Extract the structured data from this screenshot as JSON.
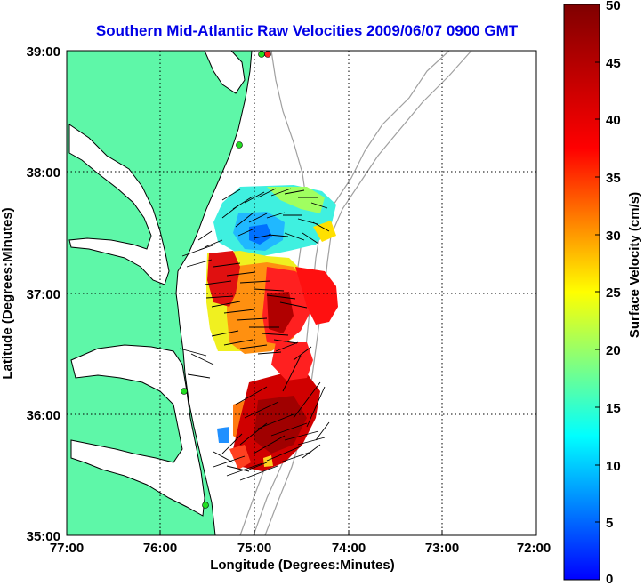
{
  "title": "Southern Mid-Atlantic Raw Velocities 2009/06/07 0900 GMT",
  "xaxis": {
    "label": "Longitude (Degrees:Minutes)",
    "ticks": [
      "77:00",
      "76:00",
      "75:00",
      "74:00",
      "73:00",
      "72:00"
    ]
  },
  "yaxis": {
    "label": "Latitude (Degrees:Minutes)",
    "ticks": [
      "39:00",
      "38:00",
      "37:00",
      "36:00",
      "35:00"
    ]
  },
  "colorbar": {
    "label": "Surface Velocity (cm/s)",
    "ticks": [
      "50",
      "45",
      "40",
      "35",
      "30",
      "25",
      "20",
      "15",
      "10",
      "5",
      "0"
    ],
    "min": 0,
    "max": 50,
    "colormap": "jet"
  },
  "colors": {
    "land": "#5ef7a8",
    "coastline": "#000000",
    "bathymetry": "#a0a0a0",
    "grid": "#000000",
    "title": "#0000e6",
    "station": "#22dd22"
  },
  "chart_data": {
    "type": "heatmap",
    "title": "Southern Mid-Atlantic Raw Velocities 2009/06/07 0900 GMT",
    "xlabel": "Longitude (Degrees:Minutes)",
    "ylabel": "Latitude (Degrees:Minutes)",
    "xlim": [
      -77.0,
      -72.0
    ],
    "ylim": [
      35.0,
      39.0
    ],
    "grid": true,
    "colorbar_range": [
      0,
      50
    ],
    "stations": [
      {
        "lon": -74.85,
        "lat": 38.95
      },
      {
        "lon": -74.9,
        "lat": 38.22
      },
      {
        "lon": -75.72,
        "lat": 36.2
      },
      {
        "lon": -75.5,
        "lat": 35.25
      }
    ],
    "velocity_regions": [
      {
        "region": "north",
        "lat_range": [
          37.3,
          37.95
        ],
        "speed_cms": [
          8,
          22
        ]
      },
      {
        "region": "central",
        "lat_range": [
          36.5,
          37.3
        ],
        "speed_cms": [
          25,
          48
        ]
      },
      {
        "region": "south",
        "lat_range": [
          35.6,
          36.5
        ],
        "speed_cms": [
          38,
          50
        ]
      }
    ]
  }
}
